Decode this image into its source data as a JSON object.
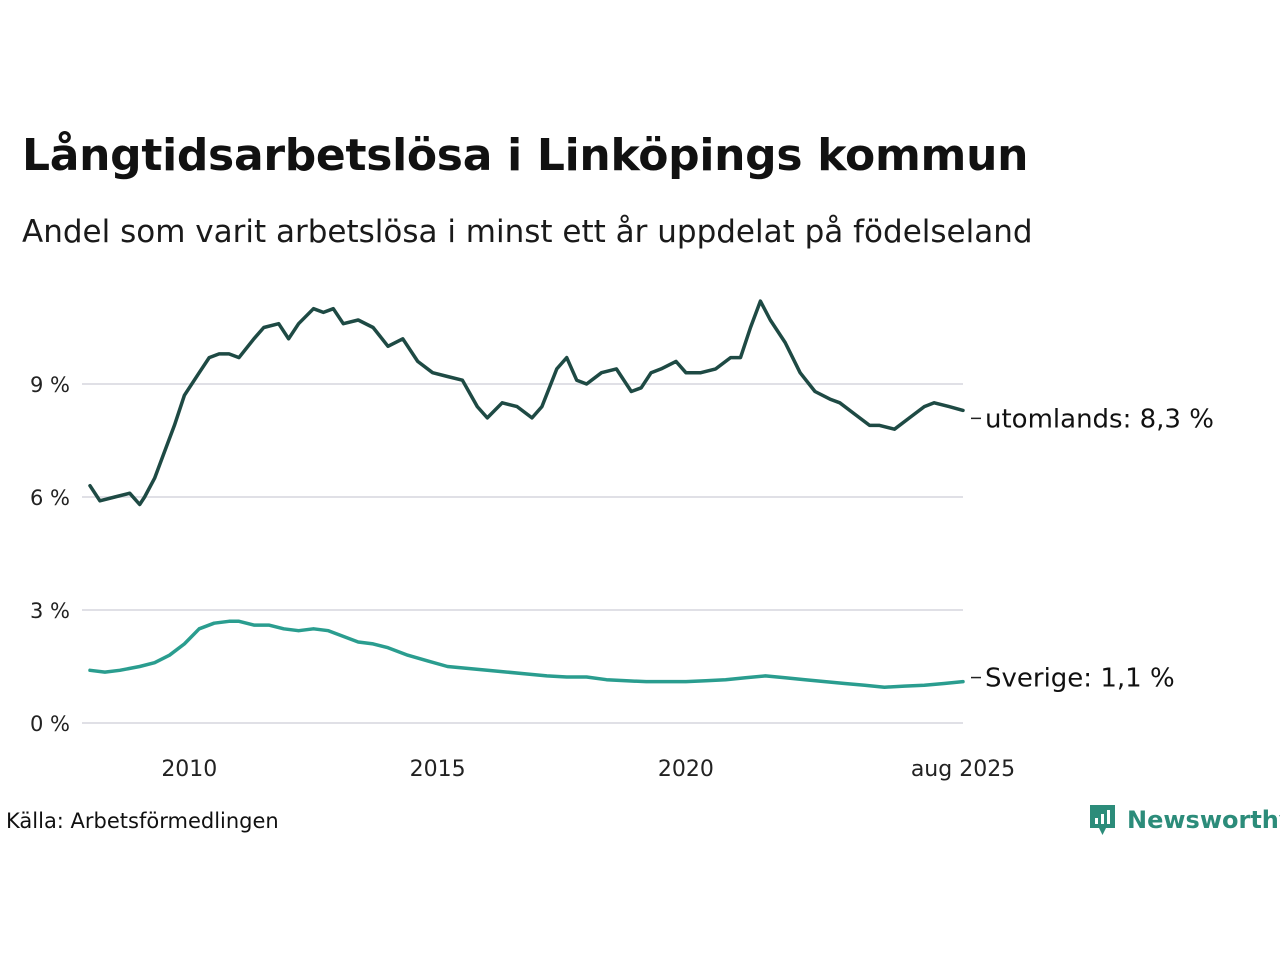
{
  "title": "Långtidsarbetslösa i Linköpings kommun",
  "subtitle": "Andel som varit arbetslösa i minst ett år uppdelat på födelseland",
  "source": "Källa: Arbetsförmedlingen",
  "brand": {
    "name": "Newsworthy",
    "icon": "newsworthy-logo-icon",
    "color": "#2c8c7a"
  },
  "chart_data": {
    "type": "line",
    "y_ticks": [
      {
        "value": 0,
        "label": "0 %"
      },
      {
        "value": 3,
        "label": "3 %"
      },
      {
        "value": 6,
        "label": "6 %"
      },
      {
        "value": 9,
        "label": "9 %"
      }
    ],
    "x_ticks": [
      {
        "value": 2010,
        "label": "2010"
      },
      {
        "value": 2015,
        "label": "2015"
      },
      {
        "value": 2020,
        "label": "2020"
      },
      {
        "value": 2025.58,
        "label": "aug 2025"
      }
    ],
    "xlim": [
      2008.0,
      2025.58
    ],
    "ylim": [
      0,
      11.5
    ],
    "grid": true,
    "series": [
      {
        "name": "utomlands",
        "end_label": "utomlands: 8,3 %",
        "color": "#1e4a44",
        "x": [
          2008.0,
          2008.2,
          2008.5,
          2008.8,
          2009.0,
          2009.1,
          2009.3,
          2009.5,
          2009.7,
          2009.9,
          2010.0,
          2010.2,
          2010.4,
          2010.6,
          2010.8,
          2011.0,
          2011.3,
          2011.5,
          2011.8,
          2012.0,
          2012.2,
          2012.5,
          2012.7,
          2012.9,
          2013.1,
          2013.4,
          2013.7,
          2014.0,
          2014.3,
          2014.6,
          2014.9,
          2015.2,
          2015.5,
          2015.8,
          2016.0,
          2016.3,
          2016.6,
          2016.9,
          2017.1,
          2017.4,
          2017.6,
          2017.8,
          2018.0,
          2018.3,
          2018.6,
          2018.9,
          2019.1,
          2019.3,
          2019.5,
          2019.8,
          2020.0,
          2020.3,
          2020.6,
          2020.9,
          2021.1,
          2021.3,
          2021.5,
          2021.7,
          2022.0,
          2022.3,
          2022.6,
          2022.9,
          2023.1,
          2023.4,
          2023.7,
          2023.9,
          2024.2,
          2024.5,
          2024.8,
          2025.0,
          2025.3,
          2025.58
        ],
        "values": [
          6.3,
          5.9,
          6.0,
          6.1,
          5.8,
          6.0,
          6.5,
          7.2,
          7.9,
          8.7,
          8.9,
          9.3,
          9.7,
          9.8,
          9.8,
          9.7,
          10.2,
          10.5,
          10.6,
          10.2,
          10.6,
          11.0,
          10.9,
          11.0,
          10.6,
          10.7,
          10.5,
          10.0,
          10.2,
          9.6,
          9.3,
          9.2,
          9.1,
          8.4,
          8.1,
          8.5,
          8.4,
          8.1,
          8.4,
          9.4,
          9.7,
          9.1,
          9.0,
          9.3,
          9.4,
          8.8,
          8.9,
          9.3,
          9.4,
          9.6,
          9.3,
          9.3,
          9.4,
          9.7,
          9.7,
          10.5,
          11.2,
          10.7,
          10.1,
          9.3,
          8.8,
          8.6,
          8.5,
          8.2,
          7.9,
          7.9,
          7.8,
          8.1,
          8.4,
          8.5,
          8.4,
          8.3
        ]
      },
      {
        "name": "Sverige",
        "end_label": "Sverige: 1,1 %",
        "color": "#2a9d8f",
        "x": [
          2008.0,
          2008.3,
          2008.6,
          2009.0,
          2009.3,
          2009.6,
          2009.9,
          2010.2,
          2010.5,
          2010.8,
          2011.0,
          2011.3,
          2011.6,
          2011.9,
          2012.2,
          2012.5,
          2012.8,
          2013.1,
          2013.4,
          2013.7,
          2014.0,
          2014.4,
          2014.8,
          2015.2,
          2015.6,
          2016.0,
          2016.4,
          2016.8,
          2017.2,
          2017.6,
          2018.0,
          2018.4,
          2018.8,
          2019.2,
          2019.6,
          2020.0,
          2020.4,
          2020.8,
          2021.2,
          2021.6,
          2022.0,
          2022.4,
          2022.8,
          2023.2,
          2023.6,
          2024.0,
          2024.4,
          2024.8,
          2025.2,
          2025.58
        ],
        "values": [
          1.4,
          1.35,
          1.4,
          1.5,
          1.6,
          1.8,
          2.1,
          2.5,
          2.65,
          2.7,
          2.7,
          2.6,
          2.6,
          2.5,
          2.45,
          2.5,
          2.45,
          2.3,
          2.15,
          2.1,
          2.0,
          1.8,
          1.65,
          1.5,
          1.45,
          1.4,
          1.35,
          1.3,
          1.25,
          1.22,
          1.22,
          1.15,
          1.12,
          1.1,
          1.1,
          1.1,
          1.12,
          1.15,
          1.2,
          1.25,
          1.2,
          1.15,
          1.1,
          1.05,
          1.0,
          0.95,
          0.98,
          1.0,
          1.05,
          1.1
        ]
      }
    ]
  }
}
